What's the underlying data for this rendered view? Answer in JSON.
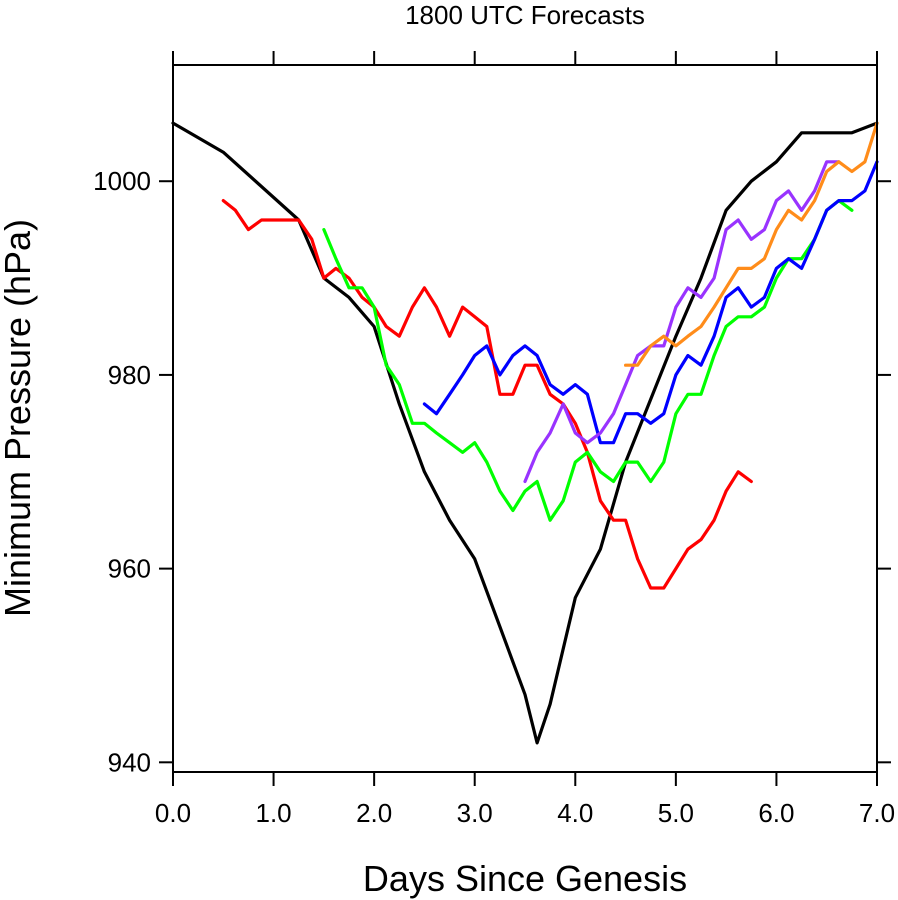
{
  "chart_data": {
    "type": "line",
    "title": "1800 UTC Forecasts",
    "xlabel": "Days Since Genesis",
    "ylabel": "Minimum Pressure (hPa)",
    "xlim": [
      0,
      7
    ],
    "ylim": [
      939,
      1012
    ],
    "x_ticks": [
      0,
      1,
      2,
      3,
      4,
      5,
      6,
      7
    ],
    "x_tick_labels": [
      "0.0",
      "1.0",
      "2.0",
      "3.0",
      "4.0",
      "5.0",
      "6.0",
      "7.0"
    ],
    "y_ticks": [
      940,
      960,
      980,
      1000
    ],
    "y_tick_labels": [
      "940",
      "960",
      "980",
      "1000"
    ],
    "grid": false,
    "legend": "none",
    "series": [
      {
        "color": "#000000",
        "points": [
          [
            0,
            1006
          ],
          [
            0.5,
            1003
          ],
          [
            1.25,
            996
          ],
          [
            1.5,
            990
          ],
          [
            1.75,
            988
          ],
          [
            2.0,
            985
          ],
          [
            2.25,
            977
          ],
          [
            2.5,
            970
          ],
          [
            2.75,
            965
          ],
          [
            3.0,
            961
          ],
          [
            3.25,
            954
          ],
          [
            3.5,
            947
          ],
          [
            3.62,
            942
          ],
          [
            3.75,
            946
          ],
          [
            4.0,
            957
          ],
          [
            4.25,
            962
          ],
          [
            4.5,
            971
          ],
          [
            5.0,
            984
          ],
          [
            5.25,
            990
          ],
          [
            5.5,
            997
          ],
          [
            5.75,
            1000
          ],
          [
            6.0,
            1002
          ],
          [
            6.25,
            1005
          ],
          [
            6.5,
            1005
          ],
          [
            6.75,
            1005
          ],
          [
            7.0,
            1006
          ]
        ]
      },
      {
        "color": "#ff0000",
        "points": [
          [
            0.5,
            998
          ],
          [
            0.62,
            997
          ],
          [
            0.75,
            995
          ],
          [
            0.88,
            996
          ],
          [
            1.0,
            996
          ],
          [
            1.25,
            996
          ],
          [
            1.38,
            994
          ],
          [
            1.5,
            990
          ],
          [
            1.62,
            991
          ],
          [
            1.75,
            990
          ],
          [
            1.88,
            988
          ],
          [
            2.0,
            987
          ],
          [
            2.12,
            985
          ],
          [
            2.25,
            984
          ],
          [
            2.38,
            987
          ],
          [
            2.5,
            989
          ],
          [
            2.62,
            987
          ],
          [
            2.75,
            984
          ],
          [
            2.88,
            987
          ],
          [
            3.0,
            986
          ],
          [
            3.12,
            985
          ],
          [
            3.25,
            978
          ],
          [
            3.38,
            978
          ],
          [
            3.5,
            981
          ],
          [
            3.62,
            981
          ],
          [
            3.75,
            978
          ],
          [
            3.88,
            977
          ],
          [
            4.0,
            975
          ],
          [
            4.12,
            972
          ],
          [
            4.25,
            967
          ],
          [
            4.38,
            965
          ],
          [
            4.5,
            965
          ],
          [
            4.62,
            961
          ],
          [
            4.75,
            958
          ],
          [
            4.88,
            958
          ],
          [
            5.0,
            960
          ],
          [
            5.12,
            962
          ],
          [
            5.25,
            963
          ],
          [
            5.38,
            965
          ],
          [
            5.5,
            968
          ],
          [
            5.62,
            970
          ],
          [
            5.75,
            969
          ]
        ]
      },
      {
        "color": "#00ff00",
        "points": [
          [
            1.5,
            995
          ],
          [
            1.62,
            992
          ],
          [
            1.75,
            989
          ],
          [
            1.88,
            989
          ],
          [
            2.0,
            987
          ],
          [
            2.12,
            981
          ],
          [
            2.25,
            979
          ],
          [
            2.38,
            975
          ],
          [
            2.5,
            975
          ],
          [
            2.62,
            974
          ],
          [
            2.75,
            973
          ],
          [
            2.88,
            972
          ],
          [
            3.0,
            973
          ],
          [
            3.12,
            971
          ],
          [
            3.25,
            968
          ],
          [
            3.38,
            966
          ],
          [
            3.5,
            968
          ],
          [
            3.62,
            969
          ],
          [
            3.75,
            965
          ],
          [
            3.88,
            967
          ],
          [
            4.0,
            971
          ],
          [
            4.12,
            972
          ],
          [
            4.25,
            970
          ],
          [
            4.38,
            969
          ],
          [
            4.5,
            971
          ],
          [
            4.62,
            971
          ],
          [
            4.75,
            969
          ],
          [
            4.88,
            971
          ],
          [
            5.0,
            976
          ],
          [
            5.12,
            978
          ],
          [
            5.25,
            978
          ],
          [
            5.38,
            982
          ],
          [
            5.5,
            985
          ],
          [
            5.62,
            986
          ],
          [
            5.75,
            986
          ],
          [
            5.88,
            987
          ],
          [
            6.0,
            990
          ],
          [
            6.12,
            992
          ],
          [
            6.25,
            992
          ],
          [
            6.38,
            994
          ],
          [
            6.5,
            997
          ],
          [
            6.62,
            998
          ],
          [
            6.75,
            997
          ]
        ]
      },
      {
        "color": "#0000ff",
        "points": [
          [
            2.5,
            977
          ],
          [
            2.62,
            976
          ],
          [
            2.75,
            978
          ],
          [
            2.88,
            980
          ],
          [
            3.0,
            982
          ],
          [
            3.12,
            983
          ],
          [
            3.25,
            980
          ],
          [
            3.38,
            982
          ],
          [
            3.5,
            983
          ],
          [
            3.62,
            982
          ],
          [
            3.75,
            979
          ],
          [
            3.88,
            978
          ],
          [
            4.0,
            979
          ],
          [
            4.12,
            978
          ],
          [
            4.25,
            973
          ],
          [
            4.38,
            973
          ],
          [
            4.5,
            976
          ],
          [
            4.62,
            976
          ],
          [
            4.75,
            975
          ],
          [
            4.88,
            976
          ],
          [
            5.0,
            980
          ],
          [
            5.12,
            982
          ],
          [
            5.25,
            981
          ],
          [
            5.38,
            984
          ],
          [
            5.5,
            988
          ],
          [
            5.62,
            989
          ],
          [
            5.75,
            987
          ],
          [
            5.88,
            988
          ],
          [
            6.0,
            991
          ],
          [
            6.12,
            992
          ],
          [
            6.25,
            991
          ],
          [
            6.38,
            994
          ],
          [
            6.5,
            997
          ],
          [
            6.62,
            998
          ],
          [
            6.75,
            998
          ],
          [
            6.88,
            999
          ],
          [
            7.0,
            1002
          ]
        ]
      },
      {
        "color": "#9933ff",
        "points": [
          [
            3.5,
            969
          ],
          [
            3.62,
            972
          ],
          [
            3.75,
            974
          ],
          [
            3.88,
            977
          ],
          [
            4.0,
            974
          ],
          [
            4.12,
            973
          ],
          [
            4.25,
            974
          ],
          [
            4.38,
            976
          ],
          [
            4.5,
            979
          ],
          [
            4.62,
            982
          ],
          [
            4.75,
            983
          ],
          [
            4.88,
            983
          ],
          [
            5.0,
            987
          ],
          [
            5.12,
            989
          ],
          [
            5.25,
            988
          ],
          [
            5.38,
            990
          ],
          [
            5.5,
            995
          ],
          [
            5.62,
            996
          ],
          [
            5.75,
            994
          ],
          [
            5.88,
            995
          ],
          [
            6.0,
            998
          ],
          [
            6.12,
            999
          ],
          [
            6.25,
            997
          ],
          [
            6.38,
            999
          ],
          [
            6.5,
            1002
          ],
          [
            6.62,
            1002
          ]
        ]
      },
      {
        "color": "#ff8c1a",
        "points": [
          [
            4.5,
            981
          ],
          [
            4.62,
            981
          ],
          [
            4.75,
            983
          ],
          [
            4.88,
            984
          ],
          [
            5.0,
            983
          ],
          [
            5.12,
            984
          ],
          [
            5.25,
            985
          ],
          [
            5.38,
            987
          ],
          [
            5.5,
            989
          ],
          [
            5.62,
            991
          ],
          [
            5.75,
            991
          ],
          [
            5.88,
            992
          ],
          [
            6.0,
            995
          ],
          [
            6.12,
            997
          ],
          [
            6.25,
            996
          ],
          [
            6.38,
            998
          ],
          [
            6.5,
            1001
          ],
          [
            6.62,
            1002
          ],
          [
            6.75,
            1001
          ],
          [
            6.88,
            1002
          ],
          [
            7.0,
            1006
          ]
        ]
      }
    ]
  }
}
